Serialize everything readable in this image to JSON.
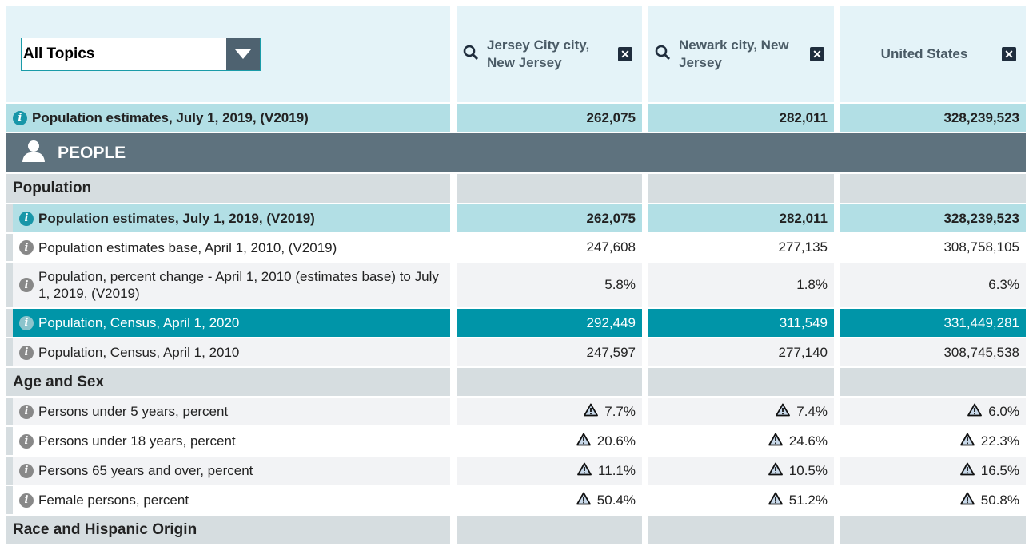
{
  "topic_select": {
    "value": "All Topics"
  },
  "columns": [
    {
      "name": "Jersey City city, New Jersey"
    },
    {
      "name": "Newark city, New Jersey"
    },
    {
      "name": "United States"
    }
  ],
  "pinned_row": {
    "label": "Population estimates, July 1, 2019, (V2019)",
    "values": [
      "262,075",
      "282,011",
      "328,239,523"
    ]
  },
  "section": {
    "label": "PEOPLE",
    "icon": "person-icon"
  },
  "groups": [
    {
      "label": "Population",
      "rows": [
        {
          "label": "Population estimates, July 1, 2019, (V2019)",
          "values": [
            "262,075",
            "282,011",
            "328,239,523"
          ]
        },
        {
          "label": "Population estimates base, April 1, 2010, (V2019)",
          "values": [
            "247,608",
            "277,135",
            "308,758,105"
          ]
        },
        {
          "label": "Population, percent change - April 1, 2010 (estimates base) to July 1, 2019, (V2019)",
          "values": [
            "5.8%",
            "1.8%",
            "6.3%"
          ]
        },
        {
          "label": "Population, Census, April 1, 2020",
          "values": [
            "292,449",
            "311,549",
            "331,449,281"
          ]
        },
        {
          "label": "Population, Census, April 1, 2010",
          "values": [
            "247,597",
            "277,140",
            "308,745,538"
          ]
        }
      ]
    },
    {
      "label": "Age and Sex",
      "rows": [
        {
          "label": "Persons under 5 years, percent",
          "values": [
            "7.7%",
            "7.4%",
            "6.0%"
          ]
        },
        {
          "label": "Persons under 18 years, percent",
          "values": [
            "20.6%",
            "24.6%",
            "22.3%"
          ]
        },
        {
          "label": "Persons 65 years and over, percent",
          "values": [
            "11.1%",
            "10.5%",
            "16.5%"
          ]
        },
        {
          "label": "Female persons, percent",
          "values": [
            "50.4%",
            "51.2%",
            "50.8%"
          ]
        }
      ]
    },
    {
      "label": "Race and Hispanic Origin",
      "rows": []
    }
  ],
  "colors": {
    "highlight": "#b2dfe5",
    "census": "#0095a8",
    "section": "#5e727e",
    "category": "#d6dde0"
  }
}
